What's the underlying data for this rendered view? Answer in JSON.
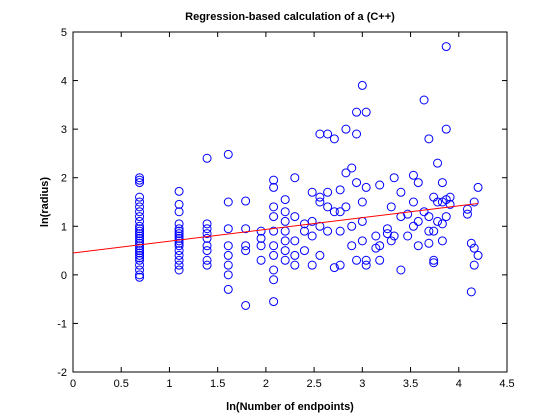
{
  "chart_data": {
    "type": "scatter",
    "title": "Regression-based calculation of a (C++)",
    "x_label": "ln(Number of endpoints)",
    "y_label": "ln(radius)",
    "xlim": [
      0,
      4.5
    ],
    "xticks": [
      0,
      0.5,
      1,
      1.5,
      2,
      2.5,
      3,
      3.5,
      4,
      4.5
    ],
    "ylim": [
      -2,
      5
    ],
    "yticks": [
      -2,
      -1,
      0,
      1,
      2,
      3,
      4,
      5
    ],
    "series": [
      {
        "color": "#0000ff",
        "mode": "markers",
        "x": [
          0.69,
          0.69,
          0.69,
          0.69,
          0.69,
          0.69,
          0.69,
          0.69,
          0.69,
          0.69,
          0.69,
          0.69,
          0.69,
          0.69,
          0.69,
          0.69,
          0.69,
          0.69,
          0.69,
          0.69,
          0.69,
          0.69,
          0.69,
          0.69,
          0.69,
          0.69,
          0.69,
          0.69,
          1.1,
          1.1,
          1.1,
          1.1,
          1.1,
          1.1,
          1.1,
          1.1,
          1.1,
          1.1,
          1.1,
          1.1,
          1.1,
          1.1,
          1.1,
          1.1,
          1.1,
          1.39,
          1.39,
          1.39,
          1.39,
          1.39,
          1.39,
          1.39,
          1.39,
          1.39,
          1.61,
          1.61,
          1.61,
          1.61,
          1.61,
          1.61,
          1.61,
          1.61,
          1.79,
          1.79,
          1.79,
          1.79,
          1.79,
          1.95,
          1.95,
          1.95,
          1.95,
          2.08,
          2.08,
          2.08,
          2.08,
          2.08,
          2.08,
          2.08,
          2.08,
          2.08,
          2.08,
          2.2,
          2.2,
          2.2,
          2.2,
          2.2,
          2.2,
          2.2,
          2.3,
          2.3,
          2.3,
          2.3,
          2.3,
          2.4,
          2.4,
          2.4,
          2.48,
          2.48,
          2.48,
          2.48,
          2.56,
          2.56,
          2.56,
          2.56,
          2.56,
          2.64,
          2.64,
          2.64,
          2.64,
          2.71,
          2.71,
          2.71,
          2.77,
          2.77,
          2.77,
          2.77,
          2.83,
          2.83,
          2.83,
          2.89,
          2.89,
          2.89,
          2.94,
          2.94,
          2.94,
          2.94,
          3.0,
          3.0,
          3.0,
          3.0,
          3.04,
          3.04,
          3.04,
          3.04,
          3.14,
          3.14,
          3.18,
          3.18,
          3.18,
          3.26,
          3.26,
          3.3,
          3.3,
          3.33,
          3.33,
          3.4,
          3.4,
          3.4,
          3.47,
          3.47,
          3.53,
          3.53,
          3.53,
          3.58,
          3.58,
          3.58,
          3.64,
          3.64,
          3.69,
          3.69,
          3.69,
          3.69,
          3.74,
          3.74,
          3.74,
          3.74,
          3.78,
          3.78,
          3.78,
          3.83,
          3.83,
          3.83,
          3.83,
          3.87,
          3.87,
          3.87,
          3.87,
          3.91,
          3.91,
          4.09,
          4.09,
          4.13,
          4.13,
          4.16,
          4.16,
          4.16,
          4.2,
          4.2
        ],
        "values": [
          2.0,
          1.95,
          1.9,
          1.6,
          1.5,
          1.4,
          1.3,
          1.2,
          1.1,
          1.0,
          0.95,
          0.9,
          0.85,
          0.8,
          0.75,
          0.7,
          0.65,
          0.6,
          0.55,
          0.5,
          0.45,
          0.4,
          0.35,
          0.3,
          0.2,
          0.1,
          0.0,
          -0.05,
          1.72,
          1.45,
          1.3,
          1.05,
          0.95,
          0.9,
          0.85,
          0.8,
          0.75,
          0.7,
          0.65,
          0.6,
          0.5,
          0.4,
          0.3,
          0.2,
          0.1,
          2.4,
          1.05,
          0.95,
          0.85,
          0.75,
          0.6,
          0.5,
          0.3,
          0.2,
          2.48,
          1.5,
          0.95,
          0.6,
          0.4,
          0.2,
          0.0,
          -0.3,
          1.52,
          0.95,
          0.6,
          0.5,
          -0.63,
          0.9,
          0.75,
          0.6,
          0.3,
          1.95,
          1.8,
          1.4,
          1.2,
          0.9,
          0.6,
          0.4,
          0.1,
          -0.1,
          -0.55,
          1.55,
          1.3,
          1.1,
          0.9,
          0.7,
          0.5,
          0.3,
          2.0,
          1.2,
          0.7,
          0.4,
          0.2,
          1.05,
          0.9,
          0.5,
          1.7,
          1.1,
          0.8,
          0.2,
          2.9,
          1.6,
          1.5,
          1.0,
          0.4,
          2.9,
          1.7,
          1.4,
          0.9,
          2.8,
          1.3,
          0.15,
          1.75,
          1.3,
          0.9,
          0.2,
          3.0,
          2.1,
          1.4,
          2.2,
          1.0,
          0.6,
          3.35,
          2.9,
          1.9,
          0.3,
          3.9,
          1.5,
          1.1,
          0.7,
          3.35,
          1.8,
          0.3,
          0.2,
          0.8,
          0.55,
          1.85,
          0.6,
          0.3,
          0.95,
          0.85,
          1.4,
          0.7,
          2.0,
          0.8,
          1.7,
          1.2,
          0.1,
          1.25,
          0.8,
          2.05,
          1.5,
          1.0,
          1.9,
          1.1,
          0.6,
          3.6,
          1.3,
          2.8,
          1.2,
          0.9,
          0.65,
          1.6,
          0.9,
          0.3,
          0.25,
          2.3,
          1.5,
          1.1,
          1.9,
          1.5,
          1.05,
          0.7,
          4.7,
          3.0,
          1.55,
          1.2,
          1.6,
          1.45,
          1.25,
          1.35,
          0.65,
          -0.35,
          1.5,
          0.55,
          0.2,
          1.8,
          0.4
        ]
      },
      {
        "color": "#ff0000",
        "mode": "line",
        "x": [
          0,
          4.2
        ],
        "values": [
          0.45,
          1.47
        ]
      }
    ]
  }
}
